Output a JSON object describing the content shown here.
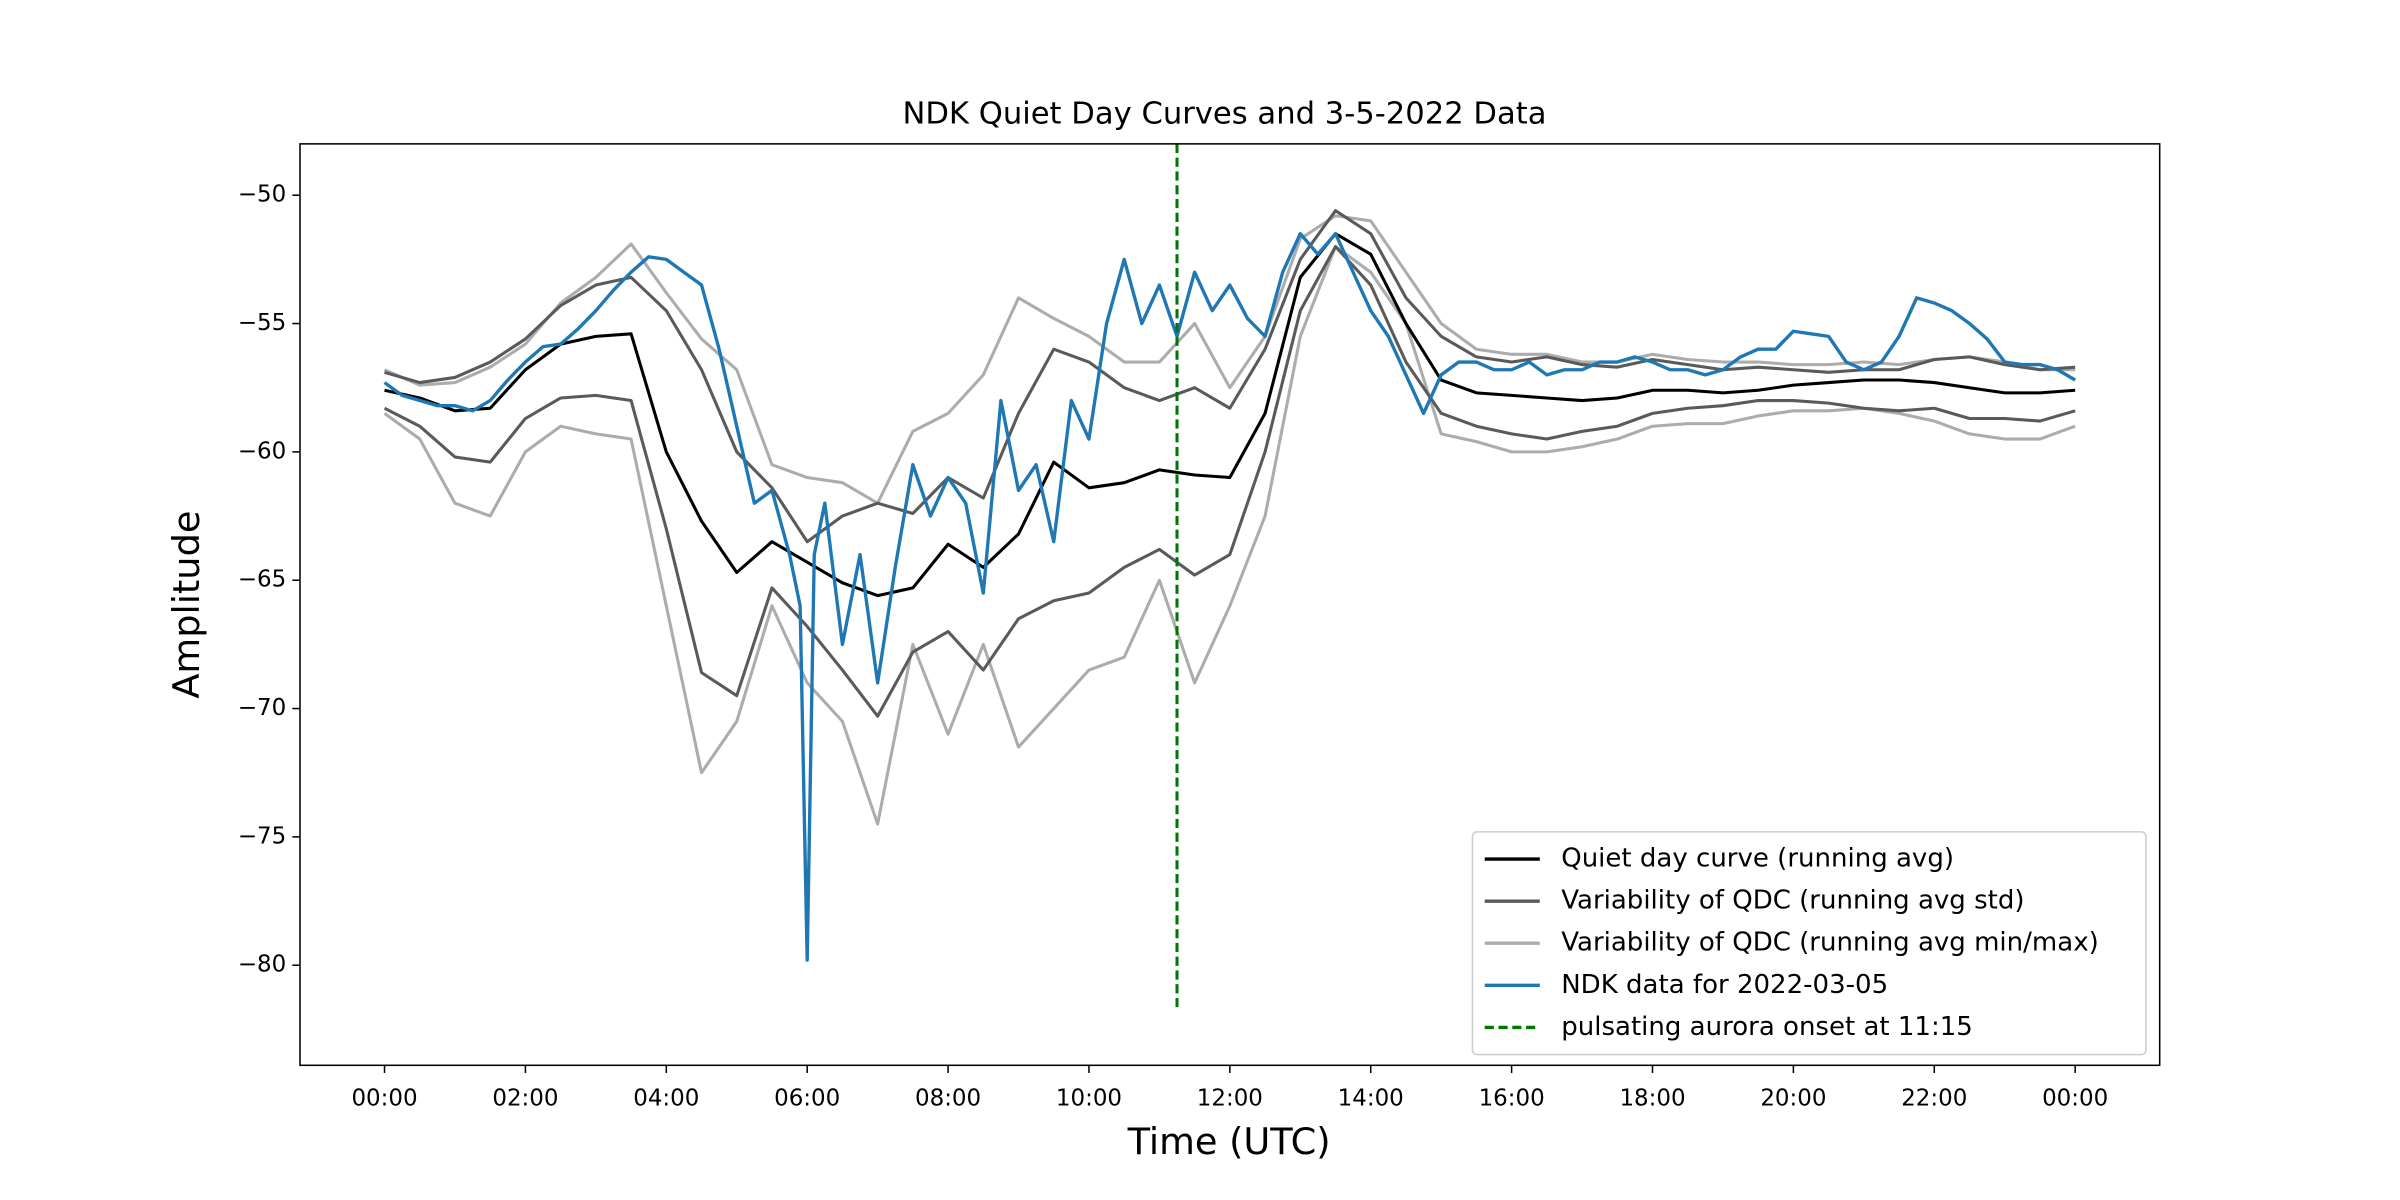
{
  "chart_data": {
    "type": "line",
    "title": "NDK Quiet Day Curves and 3-5-2022 Data",
    "xlabel": "Time (UTC)",
    "ylabel": "Amplitude",
    "xlim": [
      -1.2,
      25.2
    ],
    "ylim": [
      -83.9,
      -48.0
    ],
    "xticks": [
      {
        "value": 0,
        "label": "00:00"
      },
      {
        "value": 2,
        "label": "02:00"
      },
      {
        "value": 4,
        "label": "04:00"
      },
      {
        "value": 6,
        "label": "06:00"
      },
      {
        "value": 8,
        "label": "08:00"
      },
      {
        "value": 10,
        "label": "10:00"
      },
      {
        "value": 12,
        "label": "12:00"
      },
      {
        "value": 14,
        "label": "14:00"
      },
      {
        "value": 16,
        "label": "16:00"
      },
      {
        "value": 18,
        "label": "18:00"
      },
      {
        "value": 20,
        "label": "20:00"
      },
      {
        "value": 22,
        "label": "22:00"
      },
      {
        "value": 24,
        "label": "00:00"
      }
    ],
    "yticks": [
      {
        "value": -50,
        "label": "−50"
      },
      {
        "value": -55,
        "label": "−55"
      },
      {
        "value": -60,
        "label": "−60"
      },
      {
        "value": -65,
        "label": "−65"
      },
      {
        "value": -70,
        "label": "−70"
      },
      {
        "value": -75,
        "label": "−75"
      },
      {
        "value": -80,
        "label": "−80"
      }
    ],
    "legend": "lower right",
    "x": [
      0,
      0.5,
      1,
      1.5,
      2,
      2.5,
      3,
      3.5,
      4,
      4.5,
      5,
      5.5,
      6,
      6.5,
      7,
      7.5,
      8,
      8.5,
      9,
      9.5,
      10,
      10.5,
      11,
      11.5,
      12,
      12.5,
      13,
      13.5,
      14,
      14.5,
      15,
      15.5,
      16,
      16.5,
      17,
      17.5,
      18,
      18.5,
      19,
      19.5,
      20,
      20.5,
      21,
      21.5,
      22,
      22.5,
      23,
      23.5,
      24
    ],
    "series": [
      {
        "name": "Quiet day curve (running avg)",
        "color": "#000000",
        "values": [
          -57.6,
          -57.9,
          -58.4,
          -58.3,
          -56.8,
          -55.8,
          -55.5,
          -55.4,
          -60.0,
          -62.7,
          -64.7,
          -63.5,
          -64.3,
          -65.1,
          -65.6,
          -65.3,
          -63.6,
          -64.5,
          -63.2,
          -60.4,
          -61.4,
          -61.2,
          -60.7,
          -60.9,
          -61.0,
          -58.5,
          -53.2,
          -51.5,
          -52.3,
          -55.0,
          -57.2,
          -57.7,
          -57.8,
          -57.9,
          -58.0,
          -57.9,
          -57.6,
          -57.6,
          -57.7,
          -57.6,
          -57.4,
          -57.3,
          -57.2,
          -57.2,
          -57.3,
          -57.5,
          -57.7,
          -57.7,
          -57.6
        ]
      },
      {
        "name": "Variability of QDC (running avg std)",
        "color": "#5a5a5a",
        "upper": [
          -56.9,
          -57.3,
          -57.1,
          -56.5,
          -55.6,
          -54.3,
          -53.5,
          -53.2,
          -54.5,
          -56.8,
          -60.0,
          -61.4,
          -63.5,
          -62.5,
          -62.0,
          -62.4,
          -61.0,
          -61.8,
          -58.5,
          -56.0,
          -56.5,
          -57.5,
          -58.0,
          -57.5,
          -58.3,
          -56.0,
          -52.5,
          -50.6,
          -51.5,
          -54.0,
          -55.5,
          -56.3,
          -56.5,
          -56.3,
          -56.6,
          -56.7,
          -56.4,
          -56.6,
          -56.8,
          -56.7,
          -56.8,
          -56.9,
          -56.8,
          -56.8,
          -56.4,
          -56.3,
          -56.6,
          -56.8,
          -56.7
        ],
        "lower": [
          -58.3,
          -59.0,
          -60.2,
          -60.4,
          -58.7,
          -57.9,
          -57.8,
          -58.0,
          -63.0,
          -68.6,
          -69.5,
          -65.3,
          -66.8,
          -68.5,
          -70.3,
          -67.8,
          -67.0,
          -68.5,
          -66.5,
          -65.8,
          -65.5,
          -64.5,
          -63.8,
          -64.8,
          -64.0,
          -60.0,
          -54.5,
          -52.0,
          -53.5,
          -56.5,
          -58.5,
          -59.0,
          -59.3,
          -59.5,
          -59.2,
          -59.0,
          -58.5,
          -58.3,
          -58.2,
          -58.0,
          -58.0,
          -58.1,
          -58.3,
          -58.4,
          -58.3,
          -58.7,
          -58.7,
          -58.8,
          -58.4
        ]
      },
      {
        "name": "Variability of QDC (running avg min/max)",
        "color": "#acacac",
        "upper": [
          -56.8,
          -57.4,
          -57.3,
          -56.7,
          -55.8,
          -54.2,
          -53.2,
          -51.9,
          -53.8,
          -55.6,
          -56.8,
          -60.5,
          -61.0,
          -61.2,
          -62.0,
          -59.2,
          -58.5,
          -57.0,
          -54.0,
          -54.8,
          -55.5,
          -56.5,
          -56.5,
          -55.0,
          -57.5,
          -55.5,
          -51.7,
          -50.8,
          -51.0,
          -53.0,
          -55.0,
          -56.0,
          -56.2,
          -56.2,
          -56.5,
          -56.5,
          -56.2,
          -56.4,
          -56.5,
          -56.5,
          -56.6,
          -56.6,
          -56.5,
          -56.6,
          -56.4,
          -56.3,
          -56.5,
          -56.8,
          -56.8
        ],
        "lower": [
          -58.5,
          -59.5,
          -62.0,
          -62.5,
          -60.0,
          -59.0,
          -59.3,
          -59.5,
          -66.0,
          -72.5,
          -70.5,
          -66.0,
          -69.0,
          -70.5,
          -74.5,
          -67.5,
          -71.0,
          -67.5,
          -71.5,
          -70.0,
          -68.5,
          -68.0,
          -65.0,
          -69.0,
          -66.0,
          -62.5,
          -55.5,
          -52.0,
          -53.0,
          -55.0,
          -59.3,
          -59.6,
          -60.0,
          -60.0,
          -59.8,
          -59.5,
          -59.0,
          -58.9,
          -58.9,
          -58.6,
          -58.4,
          -58.4,
          -58.3,
          -58.5,
          -58.8,
          -59.3,
          -59.5,
          -59.5,
          -59.0
        ]
      },
      {
        "name": "NDK data for 2022-03-05",
        "color": "#1f77b4",
        "x": [
          0,
          0.25,
          0.5,
          0.75,
          1,
          1.25,
          1.5,
          1.75,
          2,
          2.25,
          2.5,
          2.75,
          3,
          3.25,
          3.5,
          3.75,
          4,
          4.25,
          4.5,
          4.75,
          5,
          5.25,
          5.5,
          5.75,
          5.9,
          6,
          6.1,
          6.25,
          6.5,
          6.75,
          7,
          7.25,
          7.5,
          7.75,
          8,
          8.25,
          8.5,
          8.75,
          9,
          9.25,
          9.5,
          9.75,
          10,
          10.25,
          10.5,
          10.75,
          11,
          11.25,
          11.5,
          11.75,
          12,
          12.25,
          12.5,
          12.75,
          13,
          13.25,
          13.5,
          13.75,
          14,
          14.25,
          14.5,
          14.75,
          15,
          15.25,
          15.5,
          15.75,
          16,
          16.25,
          16.5,
          16.75,
          17,
          17.25,
          17.5,
          17.75,
          18,
          18.25,
          18.5,
          18.75,
          19,
          19.25,
          19.5,
          19.75,
          20,
          20.25,
          20.5,
          20.75,
          21,
          21.25,
          21.5,
          21.75,
          22,
          22.25,
          22.5,
          22.75,
          23,
          23.25,
          23.5,
          23.75,
          24
        ],
        "values": [
          -57.3,
          -57.8,
          -58.0,
          -58.2,
          -58.2,
          -58.4,
          -58.0,
          -57.2,
          -56.5,
          -55.9,
          -55.8,
          -55.2,
          -54.5,
          -53.7,
          -53.0,
          -52.4,
          -52.5,
          -53.0,
          -53.5,
          -56.0,
          -59.0,
          -62.0,
          -61.5,
          -64.0,
          -66.0,
          -79.8,
          -64.0,
          -62.0,
          -67.5,
          -64.0,
          -69.0,
          -64.5,
          -60.5,
          -62.5,
          -61.0,
          -62.0,
          -65.5,
          -58.0,
          -61.5,
          -60.5,
          -63.5,
          -58.0,
          -59.5,
          -55.0,
          -52.5,
          -55.0,
          -53.5,
          -55.5,
          -53.0,
          -54.5,
          -53.5,
          -54.8,
          -55.5,
          -53.0,
          -51.5,
          -52.3,
          -51.5,
          -53.0,
          -54.5,
          -55.5,
          -57.0,
          -58.5,
          -57.0,
          -56.5,
          -56.5,
          -56.8,
          -56.8,
          -56.5,
          -57.0,
          -56.8,
          -56.8,
          -56.5,
          -56.5,
          -56.3,
          -56.5,
          -56.8,
          -56.8,
          -57.0,
          -56.8,
          -56.3,
          -56.0,
          -56.0,
          -55.3,
          -55.4,
          -55.5,
          -56.5,
          -56.8,
          -56.5,
          -55.5,
          -54.0,
          -54.2,
          -54.5,
          -55.0,
          -55.6,
          -56.5,
          -56.6,
          -56.6,
          -56.8,
          -57.2
        ]
      }
    ],
    "vline": {
      "name": "pulsating aurora onset at 11:15",
      "color": "#007700",
      "x": 11.25,
      "ymin": -81.8
    }
  }
}
